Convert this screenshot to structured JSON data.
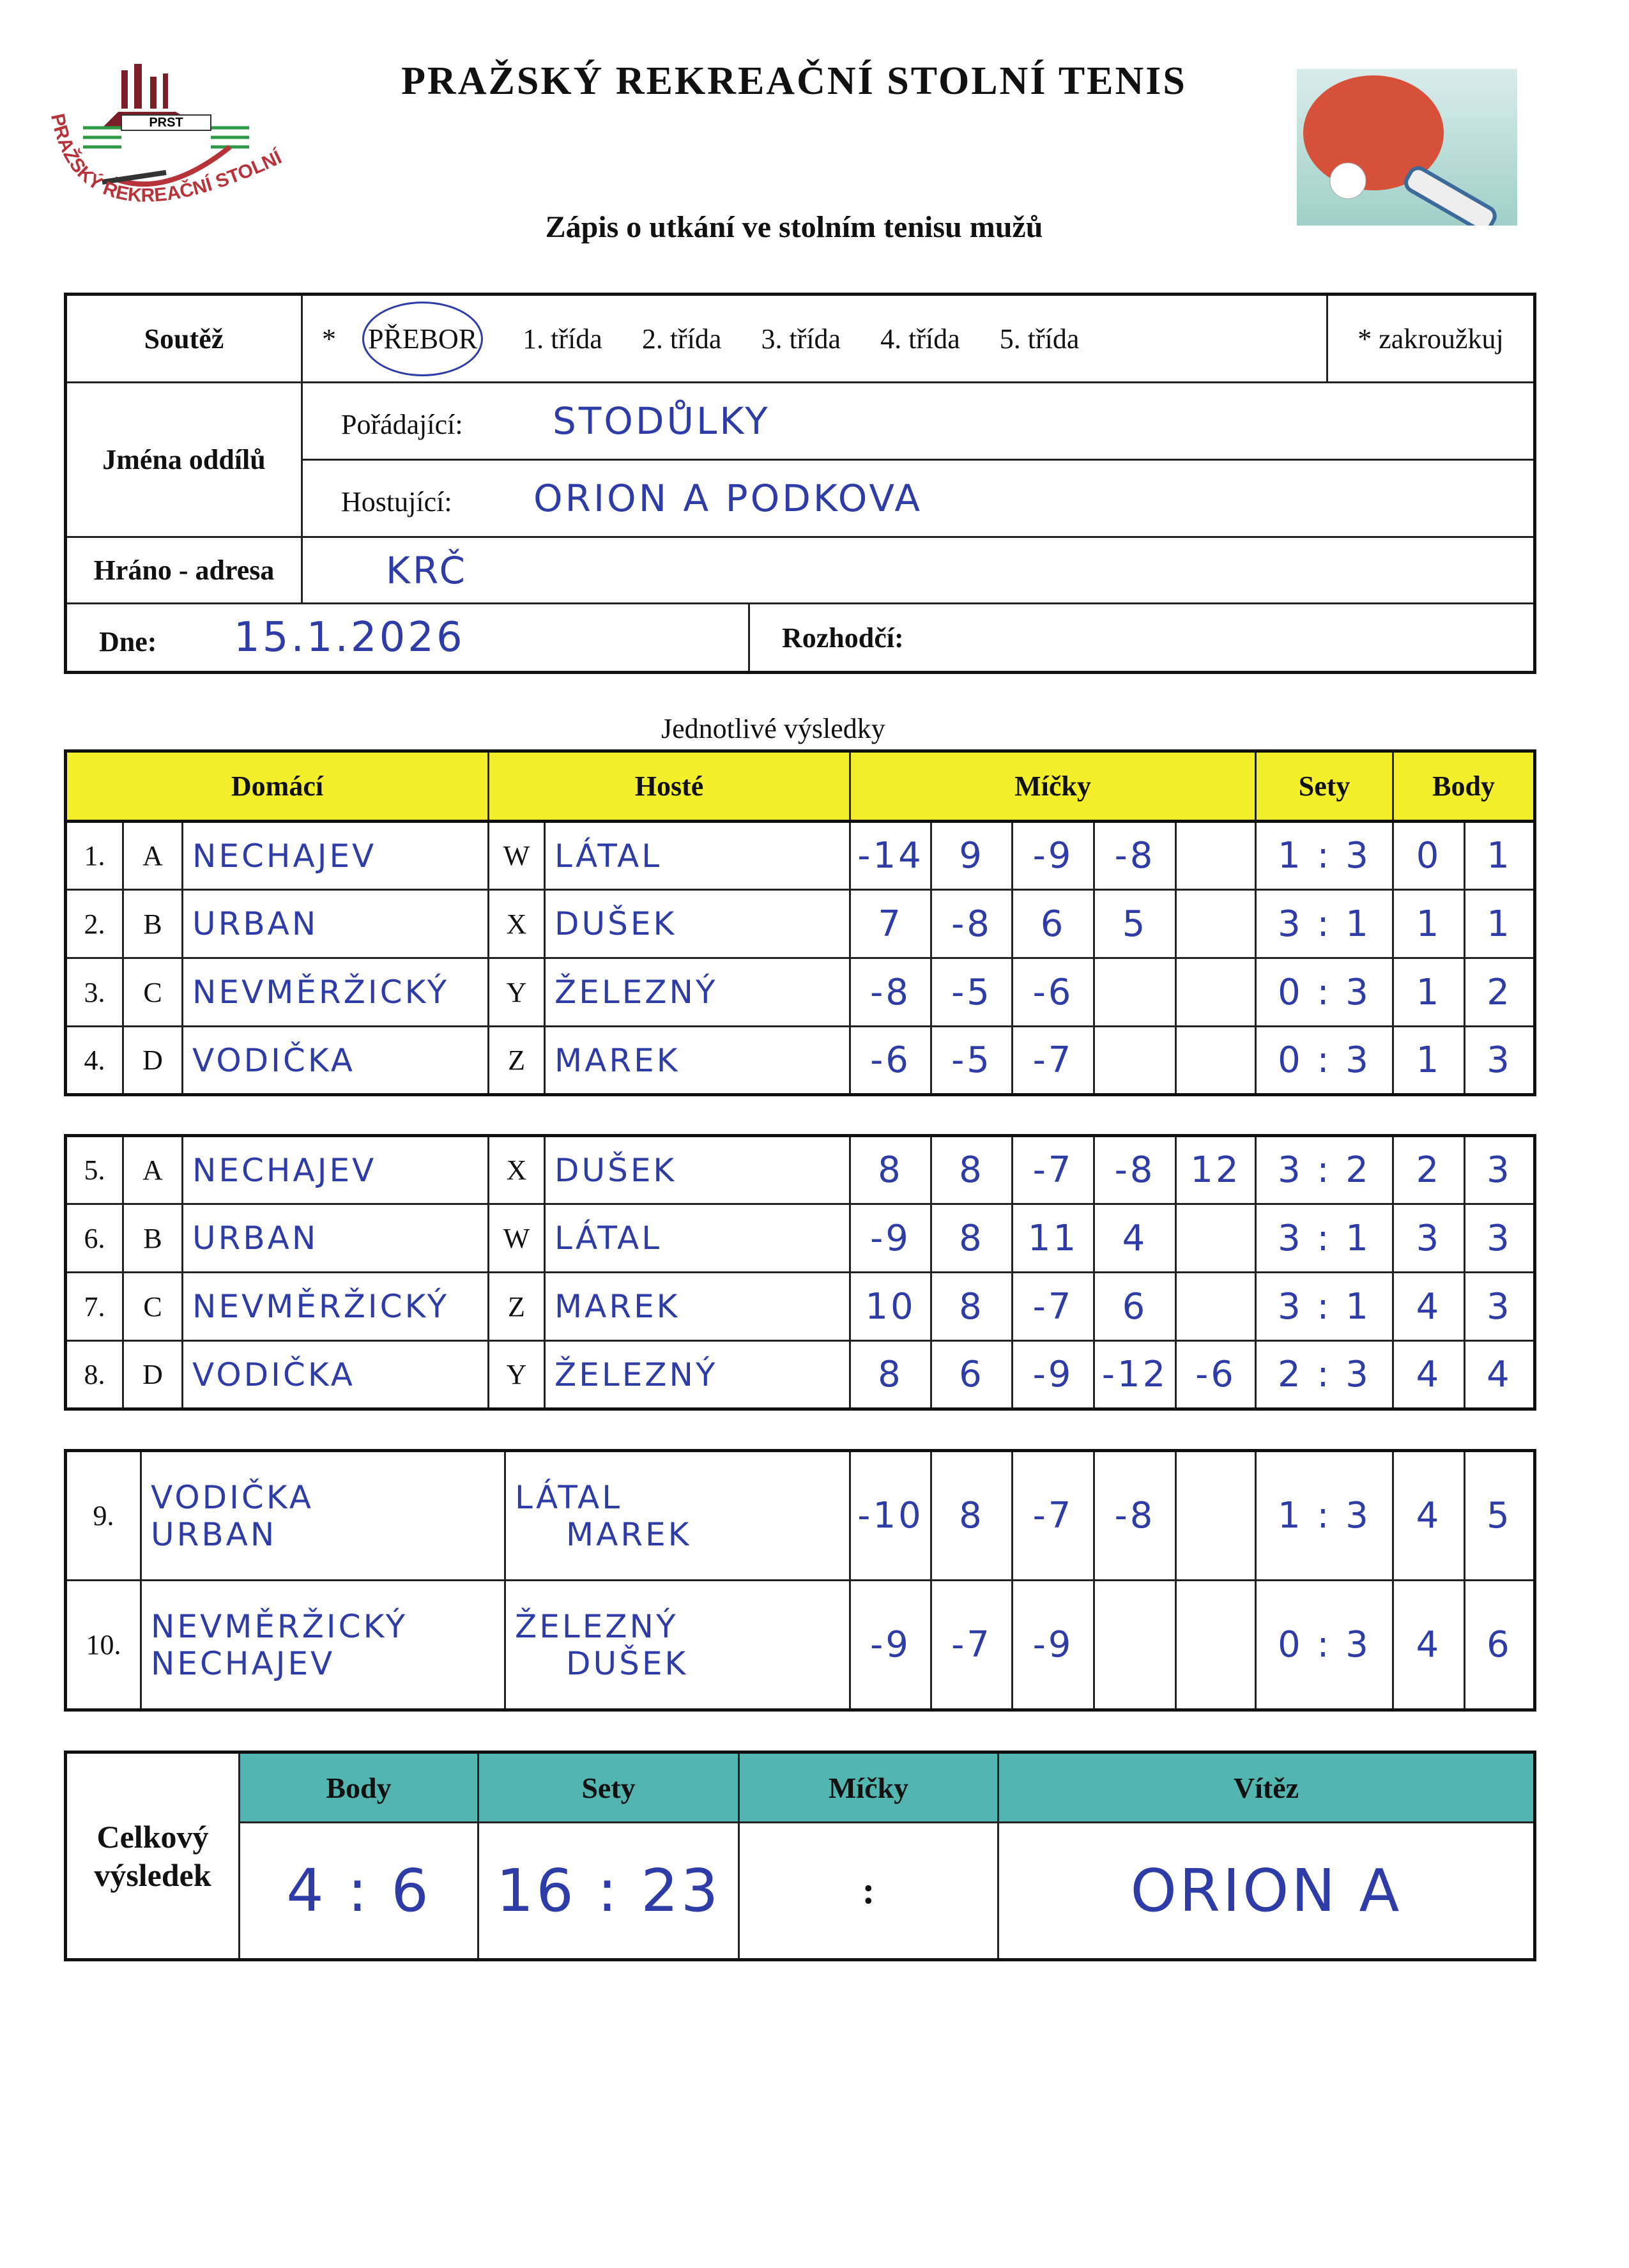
{
  "header": {
    "title": "PRAŽSKÝ REKREAČNÍ STOLNÍ TENIS",
    "subtitle": "Zápis o utkání ve stolním tenisu mužů",
    "logo": {
      "text_top": "PRST",
      "text_arc": "PRAŽSKÝ REKREAČNÍ STOLNÍ TENIS"
    },
    "image": "ping-pong-paddle-and-ball"
  },
  "info": {
    "soutez_label": "Soutěž",
    "asterisk": "*",
    "classes": [
      "PŘEBOR",
      "1. třída",
      "2. třída",
      "3. třída",
      "4. třída",
      "5. třída"
    ],
    "selected_class": "PŘEBOR",
    "note": "* zakroužkuj",
    "jmena_label": "Jména oddílů",
    "poradajici_label": "Pořádající:",
    "poradajici_value": "STODŮLKY",
    "hostujici_label": "Hostující:",
    "hostujici_value": "ORION A PODKOVA",
    "hrano_label": "Hráno - adresa",
    "hrano_value": "KRČ",
    "dne_label": "Dne:",
    "dne_value": "15.1.2026",
    "rozhodci_label": "Rozhodčí:",
    "rozhodci_value": ""
  },
  "results": {
    "section_title": "Jednotlivé výsledky",
    "columns": {
      "domaci": "Domácí",
      "hoste": "Hosté",
      "micky": "Míčky",
      "sety": "Sety",
      "body": "Body"
    },
    "singles_block1": [
      {
        "no": "1.",
        "hl": "A",
        "home": "NECHAJEV",
        "gl": "W",
        "guest": "LÁTAL",
        "balls": [
          "-14",
          "9",
          "-9",
          "-8",
          ""
        ],
        "sets": "1 : 3",
        "body": [
          "0",
          "1"
        ]
      },
      {
        "no": "2.",
        "hl": "B",
        "home": "URBAN",
        "gl": "X",
        "guest": "DUŠEK",
        "balls": [
          "7",
          "-8",
          "6",
          "5",
          ""
        ],
        "sets": "3 : 1",
        "body": [
          "1",
          "1"
        ]
      },
      {
        "no": "3.",
        "hl": "C",
        "home": "NEVMĚRŽICKÝ",
        "gl": "Y",
        "guest": "ŽELEZNÝ",
        "balls": [
          "-8",
          "-5",
          "-6",
          "",
          ""
        ],
        "sets": "0 : 3",
        "body": [
          "1",
          "2"
        ]
      },
      {
        "no": "4.",
        "hl": "D",
        "home": "VODIČKA",
        "gl": "Z",
        "guest": "MAREK",
        "balls": [
          "-6",
          "-5",
          "-7",
          "",
          ""
        ],
        "sets": "0 : 3",
        "body": [
          "1",
          "3"
        ]
      }
    ],
    "singles_block2": [
      {
        "no": "5.",
        "hl": "A",
        "home": "NECHAJEV",
        "gl": "X",
        "guest": "DUŠEK",
        "balls": [
          "8",
          "8",
          "-7",
          "-8",
          "12"
        ],
        "sets": "3 : 2",
        "body": [
          "2",
          "3"
        ]
      },
      {
        "no": "6.",
        "hl": "B",
        "home": "URBAN",
        "gl": "W",
        "guest": "LÁTAL",
        "balls": [
          "-9",
          "8",
          "11",
          "4",
          ""
        ],
        "sets": "3 : 1",
        "body": [
          "3",
          "3"
        ]
      },
      {
        "no": "7.",
        "hl": "C",
        "home": "NEVMĚRŽICKÝ",
        "gl": "Z",
        "guest": "MAREK",
        "balls": [
          "10",
          "8",
          "-7",
          "6",
          ""
        ],
        "sets": "3 : 1",
        "body": [
          "4",
          "3"
        ]
      },
      {
        "no": "8.",
        "hl": "D",
        "home": "VODIČKA",
        "gl": "Y",
        "guest": "ŽELEZNÝ",
        "balls": [
          "8",
          "6",
          "-9",
          "-12",
          "-6"
        ],
        "sets": "2 : 3",
        "body": [
          "4",
          "4"
        ]
      }
    ],
    "doubles": [
      {
        "no": "9.",
        "home": [
          "VODIČKA",
          "URBAN"
        ],
        "guest": [
          "LÁTAL",
          "MAREK"
        ],
        "balls": [
          "-10",
          "8",
          "-7",
          "-8",
          ""
        ],
        "sets": "1 : 3",
        "body": [
          "4",
          "5"
        ]
      },
      {
        "no": "10.",
        "home": [
          "NEVMĚRŽICKÝ",
          "NECHAJEV"
        ],
        "guest": [
          "ŽELEZNÝ",
          "DUŠEK"
        ],
        "balls": [
          "-9",
          "-7",
          "-9",
          "",
          ""
        ],
        "sets": "0 : 3",
        "body": [
          "4",
          "6"
        ]
      }
    ]
  },
  "total": {
    "label_line1": "Celkový",
    "label_line2": "výsledek",
    "headers": {
      "body": "Body",
      "sety": "Sety",
      "micky": "Míčky",
      "vitez": "Vítěz"
    },
    "body": "4 : 6",
    "sety": "16 : 23",
    "micky": ":",
    "vitez": "ORION A"
  },
  "colors": {
    "header_yellow": "#f3ef2a",
    "header_teal": "#53b5b0",
    "ink_blue": "#2d3ca6",
    "logo_green": "#2f9a46",
    "logo_red": "#b8323a"
  }
}
